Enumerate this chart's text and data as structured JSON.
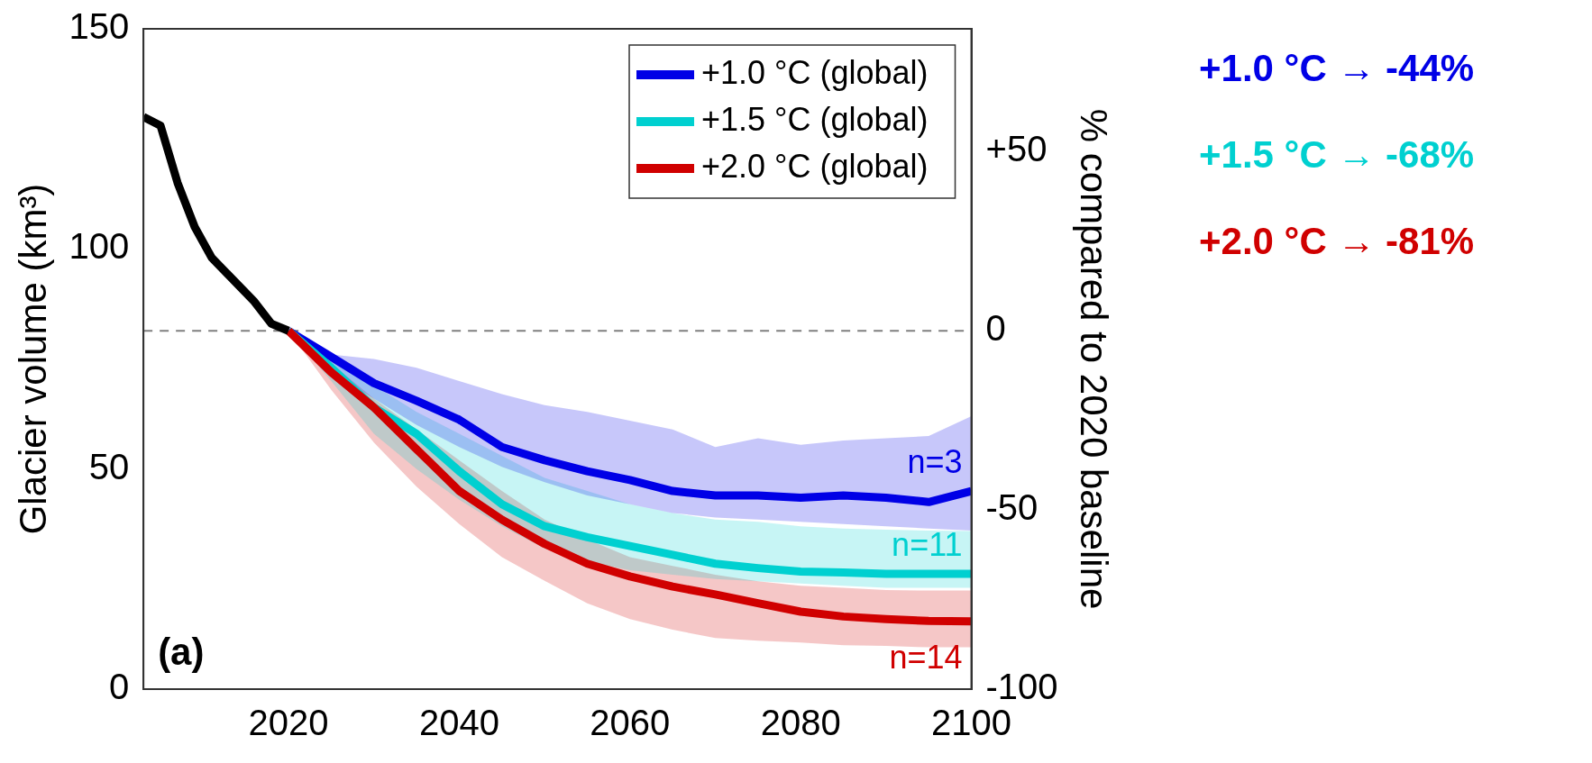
{
  "chart_data": {
    "type": "line",
    "xlim": [
      2003,
      2100
    ],
    "xticks": [
      2020,
      2040,
      2060,
      2080,
      2100
    ],
    "ylim": [
      0,
      150
    ],
    "yticks": [
      0,
      50,
      100,
      150
    ],
    "y2lim": [
      -100,
      84.3
    ],
    "y2ticks": [
      -100,
      -50,
      0,
      {
        "value": 50,
        "label": "+50"
      }
    ],
    "ylabel": "Glacier volume (km³)",
    "y2label": "% compared to 2020 baseline",
    "legend": "top right",
    "ref_lines": [
      {
        "axis": "y",
        "value": 81.4,
        "color": "#808080",
        "line_style": "dashed"
      }
    ],
    "series": [
      {
        "name": "+1.0 °C (global)",
        "color": "#0000e6",
        "x": [
          2020,
          2025,
          2030,
          2035,
          2040,
          2045,
          2050,
          2055,
          2060,
          2065,
          2070,
          2075,
          2080,
          2085,
          2090,
          2095,
          2100
        ],
        "values": [
          81.4,
          75.5,
          69.5,
          65.5,
          61.2,
          55,
          52,
          49.5,
          47.5,
          45,
          44,
          44,
          43.5,
          44,
          43.5,
          42.5,
          45
        ],
        "upper": [
          81.4,
          76,
          75,
          73,
          70,
          67,
          64.5,
          63,
          61,
          59,
          55,
          57,
          55.5,
          56.5,
          57,
          57.5,
          62
        ],
        "lower": [
          81.4,
          72,
          66,
          60,
          55,
          50.5,
          47,
          44,
          42,
          40,
          39,
          38.5,
          38,
          37.5,
          37,
          36.5,
          36
        ]
      },
      {
        "name": "+1.5 °C (global)",
        "color": "#00d0d0",
        "x": [
          2020,
          2025,
          2030,
          2035,
          2040,
          2045,
          2050,
          2055,
          2060,
          2065,
          2070,
          2075,
          2080,
          2085,
          2090,
          2095,
          2100
        ],
        "values": [
          81.4,
          73,
          64,
          58,
          49.5,
          42,
          37,
          34.5,
          32.5,
          30.5,
          28.5,
          27.5,
          26.7,
          26.5,
          26.2,
          26.2,
          26.2
        ],
        "upper": [
          81.4,
          75,
          69,
          63,
          58,
          53,
          48,
          45,
          42,
          40,
          38.5,
          38,
          37,
          36.5,
          36.2,
          36,
          35.9
        ],
        "lower": [
          81.4,
          70,
          58,
          50,
          43,
          37,
          32,
          29,
          27,
          26,
          25,
          24.5,
          24,
          23.5,
          23,
          23,
          23
        ]
      },
      {
        "name": "+2.0 °C (global)",
        "color": "#d00000",
        "x": [
          2020,
          2025,
          2030,
          2035,
          2040,
          2045,
          2050,
          2055,
          2060,
          2065,
          2070,
          2075,
          2080,
          2085,
          2090,
          2095,
          2100
        ],
        "values": [
          81.4,
          72,
          64,
          54.5,
          45,
          38.5,
          33,
          28.5,
          25.6,
          23.3,
          21.5,
          19.5,
          17.6,
          16.5,
          15.9,
          15.5,
          15.4
        ],
        "upper": [
          81.4,
          74,
          66,
          59,
          52,
          45,
          38.5,
          34,
          30,
          28,
          26,
          24.5,
          23.5,
          23,
          22.5,
          22.4,
          22.4
        ],
        "lower": [
          81.4,
          68,
          56,
          46,
          37.5,
          30,
          24.6,
          19.5,
          15.9,
          13.5,
          11.6,
          11,
          10.6,
          10,
          9.8,
          9.5,
          9.5
        ]
      },
      {
        "color": "#000000",
        "x": [
          2003,
          2005,
          2007,
          2009,
          2011,
          2013,
          2016,
          2018,
          2020
        ],
        "values": [
          130,
          128,
          115,
          105,
          98,
          94,
          88,
          83,
          81.4
        ]
      }
    ],
    "annotations": [
      "(a)",
      "n=3",
      "n=11",
      "n=14",
      "+1.0 °C → -44%",
      "+1.5 °C → -68%",
      "+2.0 °C → -81%"
    ]
  }
}
